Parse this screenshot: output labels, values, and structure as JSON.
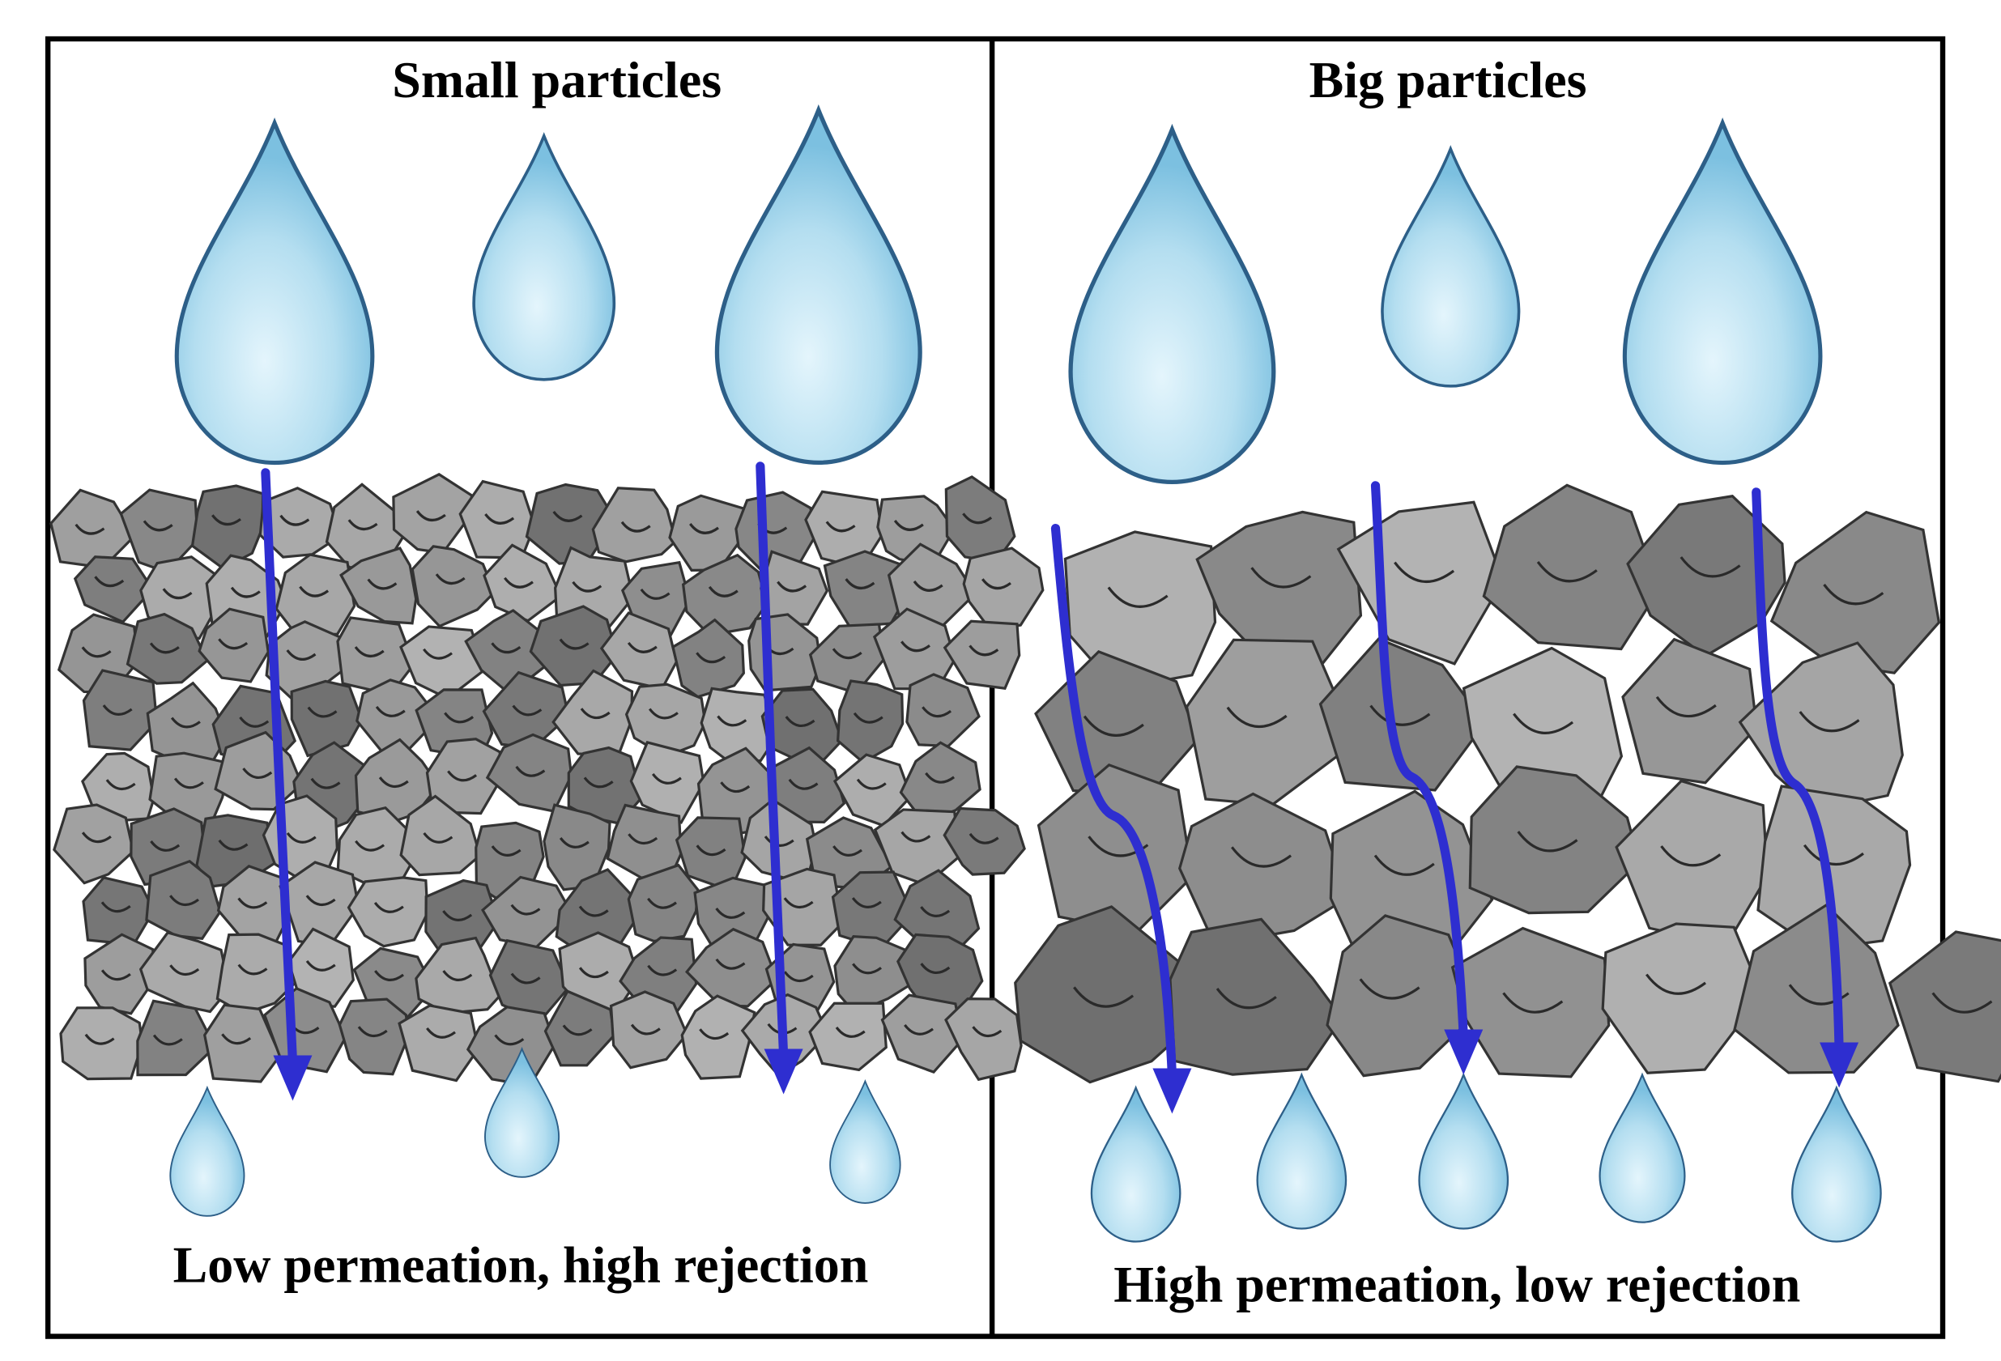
{
  "panels": [
    {
      "title": "Small particles",
      "caption": "Low permeation, high rejection"
    },
    {
      "title": "Big particles",
      "caption": "High permeation, low rejection"
    }
  ]
}
